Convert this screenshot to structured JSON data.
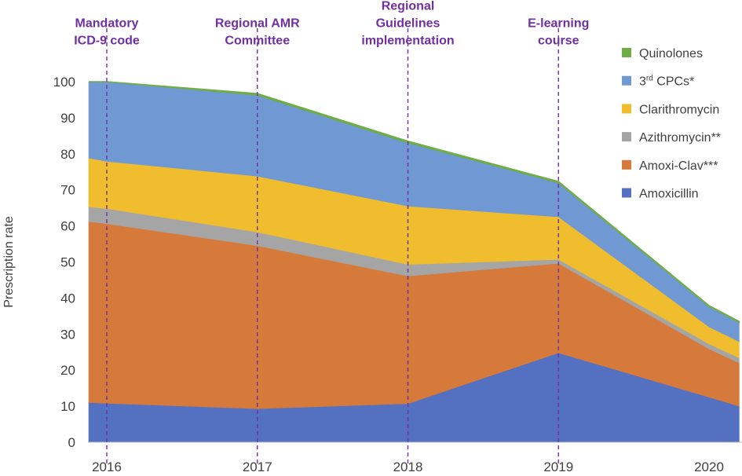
{
  "chart_data": {
    "type": "area",
    "stacked": true,
    "title": "",
    "xlabel": "",
    "ylabel": "Prescription rate",
    "ylim": [
      0,
      100
    ],
    "yticks": [
      0,
      10,
      20,
      30,
      40,
      50,
      60,
      70,
      80,
      90,
      100
    ],
    "x": [
      2016,
      2017,
      2018,
      2019,
      2020
    ],
    "x_labels": [
      "2016",
      "2017",
      "2018",
      "2019",
      "2020"
    ],
    "x_range": [
      2015.88,
      2020.2
    ],
    "series": [
      {
        "name": "Amoxicillin",
        "color": "#5470c0",
        "points": [
          [
            2015.88,
            11.0
          ],
          [
            2016,
            10.8
          ],
          [
            2017,
            9.3
          ],
          [
            2018,
            10.7
          ],
          [
            2019,
            24.8
          ],
          [
            2020,
            12.5
          ],
          [
            2020.2,
            10.0
          ]
        ]
      },
      {
        "name": "Amoxi-Clav***",
        "color": "#d67a3b",
        "points": [
          [
            2015.88,
            50.2
          ],
          [
            2016,
            49.8
          ],
          [
            2017,
            45.2
          ],
          [
            2018,
            35.4
          ],
          [
            2019,
            24.8
          ],
          [
            2020,
            13.4
          ],
          [
            2020.2,
            12.0
          ]
        ]
      },
      {
        "name": "Azithromycin**",
        "color": "#a5a5a5",
        "points": [
          [
            2015.88,
            4.1
          ],
          [
            2016,
            4.2
          ],
          [
            2017,
            3.8
          ],
          [
            2018,
            3.2
          ],
          [
            2019,
            1.1
          ],
          [
            2020,
            1.4
          ],
          [
            2020.2,
            1.4
          ]
        ]
      },
      {
        "name": "Clarithromycin",
        "color": "#efbd2d",
        "points": [
          [
            2015.88,
            13.5
          ],
          [
            2016,
            13.1
          ],
          [
            2017,
            15.5
          ],
          [
            2018,
            16.2
          ],
          [
            2019,
            11.8
          ],
          [
            2020,
            4.7
          ],
          [
            2020.2,
            4.5
          ]
        ]
      },
      {
        "name": "3rd CPCs*",
        "color": "#7099d3",
        "points": [
          [
            2015.88,
            21.2
          ],
          [
            2016,
            22.1
          ],
          [
            2017,
            22.5
          ],
          [
            2018,
            17.6
          ],
          [
            2019,
            9.5
          ],
          [
            2020,
            5.7
          ],
          [
            2020.2,
            5.4
          ]
        ]
      },
      {
        "name": "Quinolones",
        "color": "#6fad46",
        "points": [
          [
            2015.88,
            0.0
          ],
          [
            2016,
            0.0
          ],
          [
            2017,
            0.4
          ],
          [
            2018,
            0.4
          ],
          [
            2019,
            0.3
          ],
          [
            2020,
            0.2
          ],
          [
            2020.2,
            0.2
          ]
        ]
      }
    ],
    "legend": {
      "position": "right",
      "order": [
        "Quinolones",
        "3rd CPCs*",
        "Clarithromycin",
        "Azithromycin**",
        "Amoxi-Clav***",
        "Amoxicillin"
      ],
      "labels": {
        "Quinolones": [
          "Quinolones"
        ],
        "3rd CPCs*": [
          "3",
          "rd",
          " CPCs*"
        ],
        "Clarithromycin": [
          "Clarithromycin"
        ],
        "Azithromycin**": [
          "Azithromycin**"
        ],
        "Amoxi-Clav***": [
          "Amoxi-Clav***"
        ],
        "Amoxicillin": [
          "Amoxicillin"
        ]
      }
    },
    "annotations": [
      {
        "x": 2016,
        "lines": [
          "Mandatory",
          "ICD-9 code"
        ]
      },
      {
        "x": 2017,
        "lines": [
          "Regional AMR",
          "Committee"
        ]
      },
      {
        "x": 2018,
        "lines": [
          "Regional",
          "Guidelines",
          "implementation"
        ]
      },
      {
        "x": 2019,
        "lines": [
          "E-learning",
          "course"
        ]
      }
    ],
    "annotation_color": "#7030a0"
  }
}
